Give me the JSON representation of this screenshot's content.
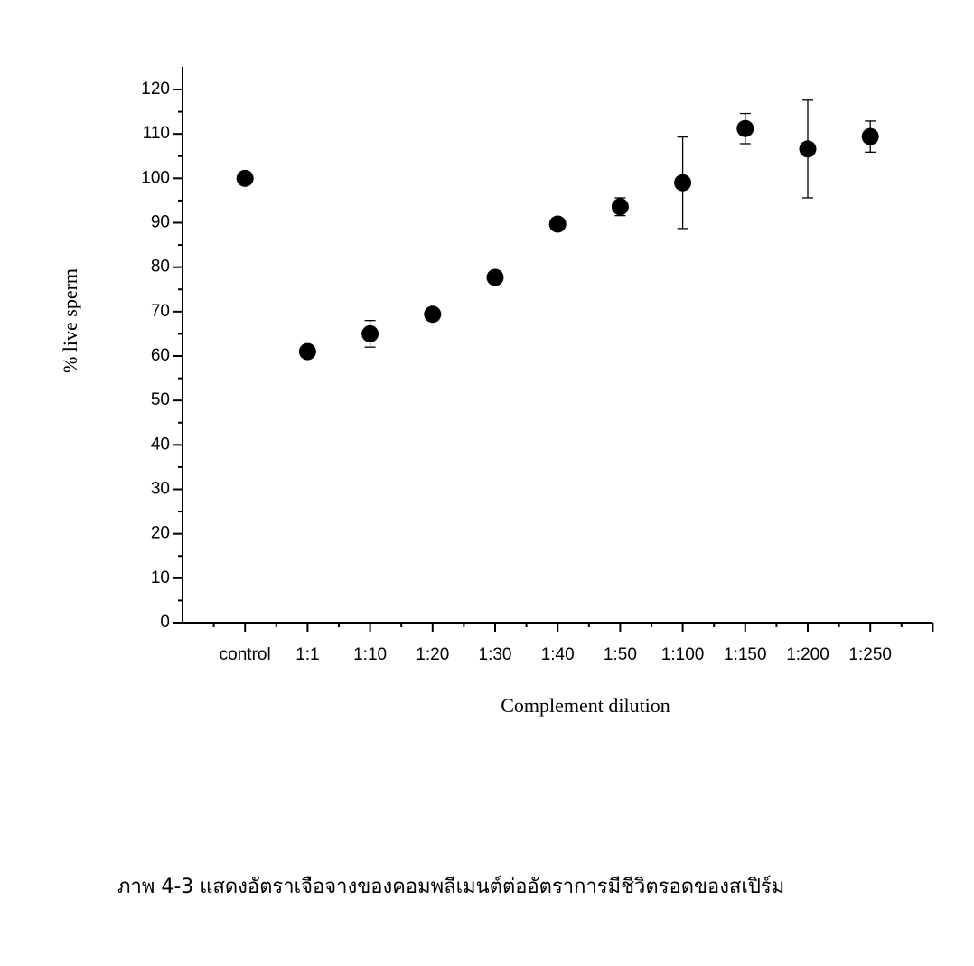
{
  "chart_data": {
    "type": "scatter",
    "x_label": "Complement dilution",
    "y_label": "% live sperm",
    "caption": "ภาพ 4-3   แสดงอัตราเจือจางของคอมพลีเมนต์ต่ออัตราการมีชีวิตรอดของสเปิร์ม",
    "categories": [
      "control",
      "1:1",
      "1:10",
      "1:20",
      "1:30",
      "1:40",
      "1:50",
      "1:100",
      "1:150",
      "1:200",
      "1:250"
    ],
    "series": [
      {
        "color": "#000000",
        "values": [
          100,
          61,
          65,
          69.4,
          77.7,
          89.7,
          93.6,
          99,
          111.2,
          106.6,
          109.4
        ],
        "errors": [
          null,
          null,
          3,
          null,
          null,
          null,
          2,
          10.3,
          3.4,
          11,
          3.5
        ]
      }
    ],
    "ylim": [
      0,
      120
    ],
    "yticks": [
      0,
      10,
      20,
      30,
      40,
      50,
      60,
      70,
      80,
      90,
      100,
      110,
      120
    ]
  }
}
